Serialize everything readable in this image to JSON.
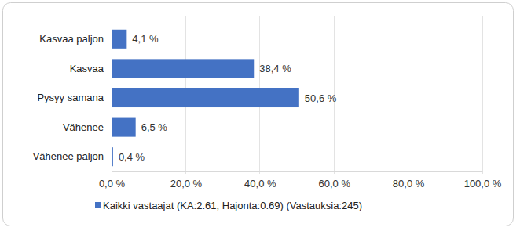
{
  "chart_data": {
    "type": "bar",
    "orientation": "horizontal",
    "categories": [
      "Kasvaa paljon",
      "Kasvaa",
      "Pysyy samana",
      "Vähenee",
      "Vähenee paljon"
    ],
    "series": [
      {
        "name": "Kaikki vastaajat (KA:2.61, Hajonta:0.69) (Vastauksia:245)",
        "color": "#4472c4",
        "values": [
          4.1,
          38.4,
          50.6,
          6.5,
          0.4
        ],
        "value_labels": [
          "4,1 %",
          "38,4 %",
          "50,6 %",
          "6,5 %",
          "0,4 %"
        ]
      }
    ],
    "xlim": [
      0,
      100
    ],
    "xticks": [
      {
        "value": 0,
        "label": "0,0 %"
      },
      {
        "value": 20,
        "label": "20,0 %"
      },
      {
        "value": 40,
        "label": "40,0 %"
      },
      {
        "value": 60,
        "label": "60,0 %"
      },
      {
        "value": 80,
        "label": "80,0 %"
      },
      {
        "value": 100,
        "label": "100,0 %"
      }
    ],
    "grid": true,
    "data_labels": true,
    "legend": "bottom"
  }
}
